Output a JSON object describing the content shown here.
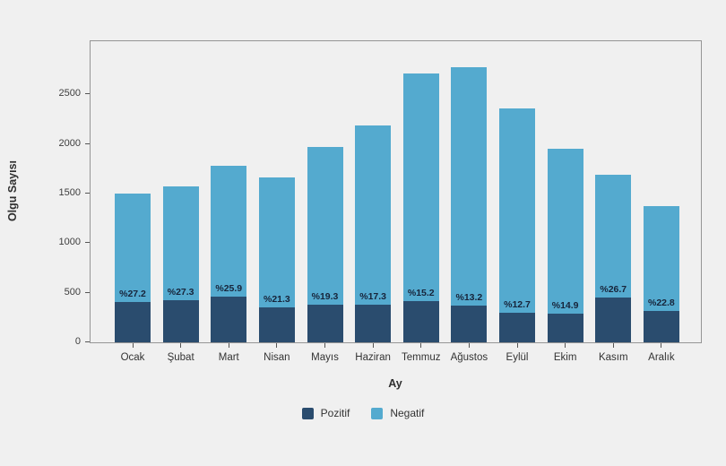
{
  "chart_data": {
    "type": "bar",
    "stacked": true,
    "title": "",
    "xlabel": "Ay",
    "ylabel": "Olgu Sayısı",
    "categories": [
      "Ocak",
      "Şubat",
      "Mart",
      "Nisan",
      "Mayıs",
      "Haziran",
      "Temmuz",
      "Ağustos",
      "Eylül",
      "Ekim",
      "Kasım",
      "Aralık"
    ],
    "series": [
      {
        "name": "Pozitif",
        "color": "#2a4c6e",
        "values": [
          408,
          429,
          461,
          355,
          380,
          378,
          412,
          366,
          300,
          291,
          451,
          313
        ]
      },
      {
        "name": "Negatif",
        "color": "#54aacf",
        "values": [
          1092,
          1141,
          1319,
          1310,
          1590,
          1807,
          2298,
          2409,
          2060,
          1659,
          1239,
          1062
        ]
      }
    ],
    "totals": [
      1500,
      1570,
      1780,
      1665,
      1970,
      2185,
      2710,
      2775,
      2360,
      1950,
      1690,
      1375
    ],
    "bar_labels": [
      "%27.2",
      "%27.3",
      "%25.9",
      "%21.3",
      "%19.3",
      "%17.3",
      "%15.2",
      "%13.2",
      "%12.7",
      "%14.9",
      "%26.7",
      "%22.8"
    ],
    "yticks": [
      0,
      500,
      1000,
      1500,
      2000,
      2500
    ],
    "ylim": [
      0,
      3035
    ],
    "grid": false,
    "legend_position": "bottom"
  },
  "colors": {
    "background": "#f0f0f0",
    "plot_border": "#959595",
    "tick": "#555555",
    "tick_label": "#3d3d3d",
    "axis_title": "#2f2f2f",
    "bar_label": "#17243a"
  }
}
